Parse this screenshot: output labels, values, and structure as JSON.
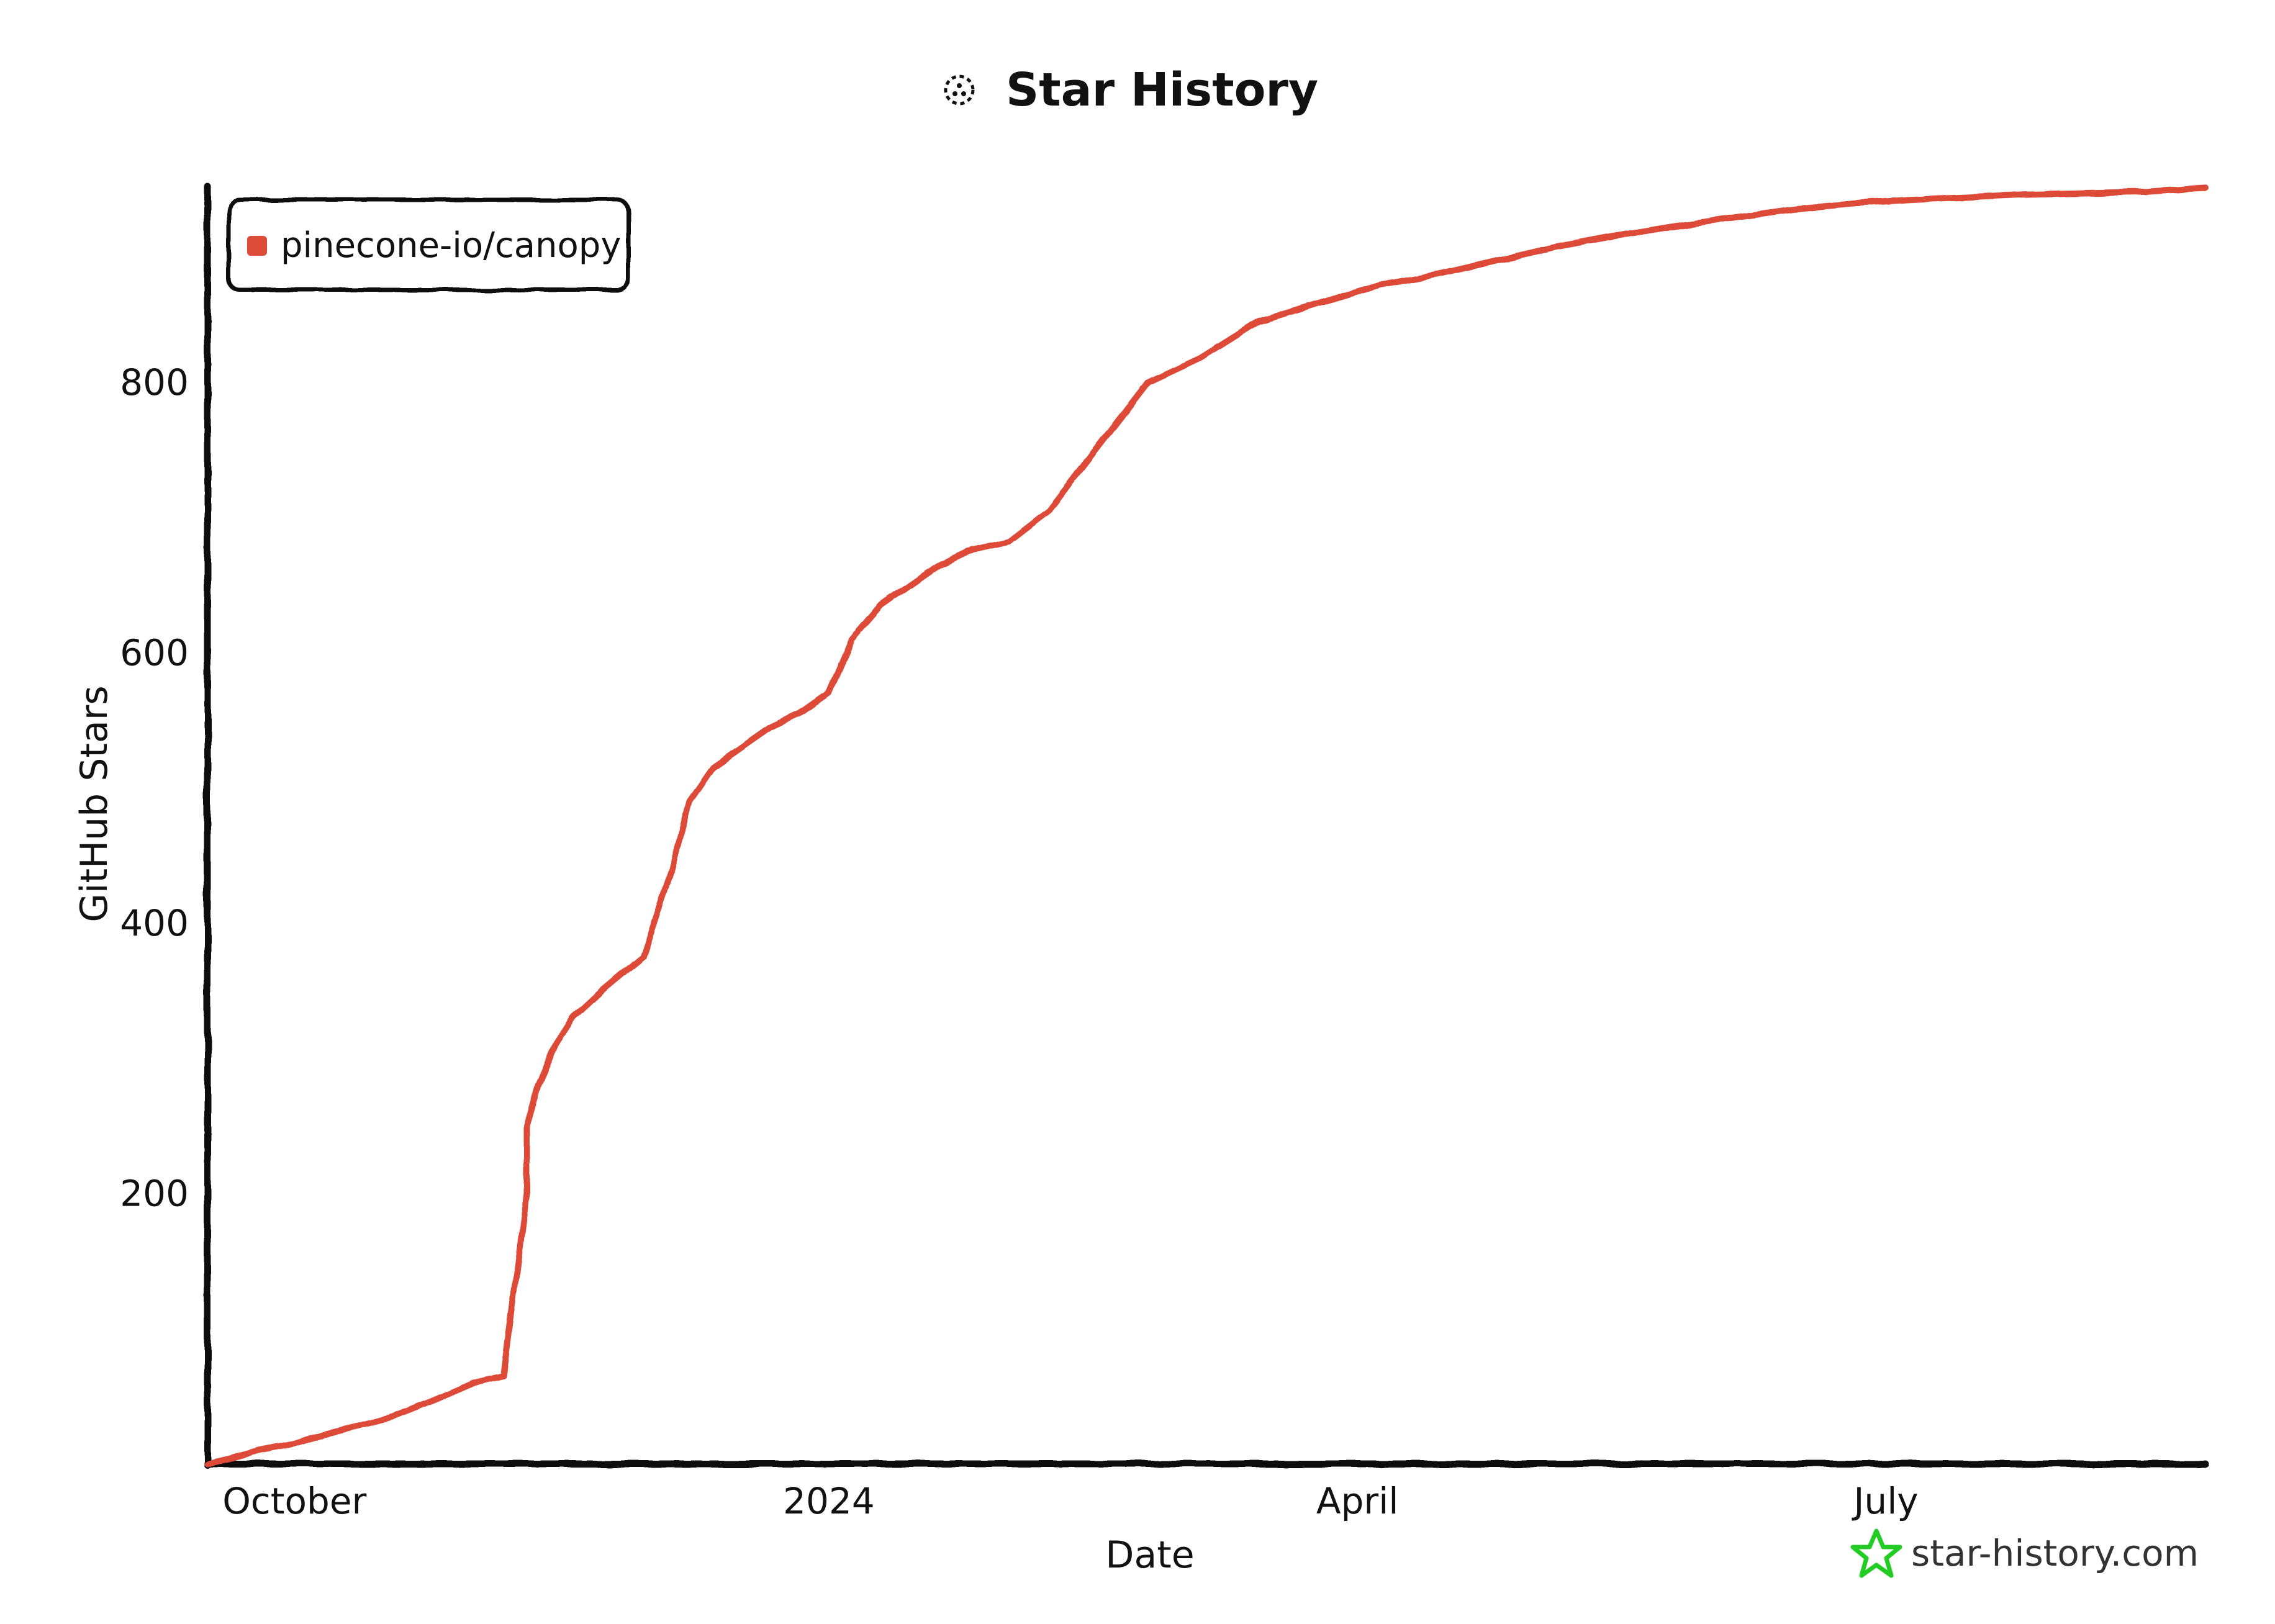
{
  "colors": {
    "series": "#dd4b39",
    "axis": "#111111",
    "background": "#ffffff",
    "watermark_star": "#22cc22"
  },
  "watermark": {
    "text": "star-history.com",
    "icon": "star-icon"
  },
  "chart_data": {
    "type": "line",
    "title": "Star History",
    "title_icon": "star-history-logo-icon",
    "xlabel": "Date",
    "ylabel": "GitHub Stars",
    "x_ticks": [
      "October",
      "2024",
      "April",
      "July"
    ],
    "x_tick_dates": [
      "2023-10-01",
      "2024-01-01",
      "2024-04-01",
      "2024-07-01"
    ],
    "y_ticks": [
      200,
      400,
      600,
      800
    ],
    "xlim": [
      "2023-09-16",
      "2024-08-25"
    ],
    "ylim": [
      0,
      945
    ],
    "grid": false,
    "legend_position": "top-left",
    "series": [
      {
        "name": "pinecone-io/canopy",
        "x": [
          "2023-09-16",
          "2023-09-20",
          "2023-09-25",
          "2023-10-01",
          "2023-10-06",
          "2023-10-12",
          "2023-10-18",
          "2023-10-25",
          "2023-11-01",
          "2023-11-06",
          "2023-11-10",
          "2023-11-10",
          "2023-11-12",
          "2023-11-15",
          "2023-11-18",
          "2023-11-23",
          "2023-11-30",
          "2023-12-05",
          "2023-12-08",
          "2023-12-12",
          "2023-12-17",
          "2023-12-22",
          "2023-12-27",
          "2024-01-01",
          "2024-01-05",
          "2024-01-10",
          "2024-01-15",
          "2024-01-20",
          "2024-01-25",
          "2024-02-01",
          "2024-02-08",
          "2024-02-16",
          "2024-02-25",
          "2024-03-05",
          "2024-03-15",
          "2024-03-25",
          "2024-04-05",
          "2024-04-15",
          "2024-04-25",
          "2024-05-05",
          "2024-05-15",
          "2024-05-25",
          "2024-06-05",
          "2024-06-15",
          "2024-06-25",
          "2024-07-05",
          "2024-07-15",
          "2024-07-25",
          "2024-08-05",
          "2024-08-15",
          "2024-08-25"
        ],
        "values": [
          0,
          4,
          10,
          15,
          22,
          28,
          35,
          47,
          60,
          65,
          200,
          250,
          280,
          310,
          330,
          350,
          375,
          440,
          490,
          515,
          530,
          545,
          555,
          570,
          610,
          635,
          650,
          665,
          675,
          682,
          705,
          750,
          800,
          818,
          845,
          858,
          872,
          880,
          890,
          900,
          908,
          915,
          922,
          928,
          932,
          935,
          937,
          939,
          940,
          941,
          944
        ]
      }
    ]
  }
}
